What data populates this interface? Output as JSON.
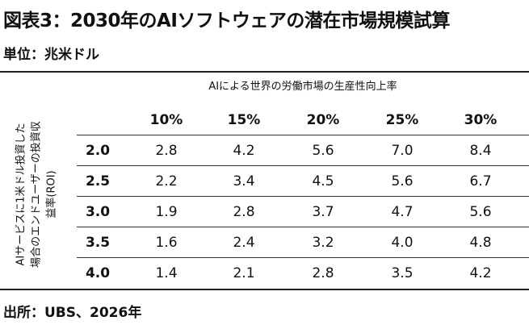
{
  "title": "図表3：2030年のAIソフトウェアの潜在市場規模試算",
  "unit": "単位：兆米ドル",
  "source": "出所：UBS、2026年",
  "chart_data": {
    "type": "table",
    "column_axis_label": "AIによる世界の労働市場の生産性向上率",
    "row_axis_label_lines": [
      "AIサービスに1米ドル投資した",
      "場合のエンドユーザーの投資収",
      "益率(ROI)"
    ],
    "columns": [
      "10%",
      "15%",
      "20%",
      "25%",
      "30%"
    ],
    "rows": [
      {
        "roi": "2.0",
        "values": [
          "2.8",
          "4.2",
          "5.6",
          "7.0",
          "8.4"
        ]
      },
      {
        "roi": "2.5",
        "values": [
          "2.2",
          "3.4",
          "4.5",
          "5.6",
          "6.7"
        ]
      },
      {
        "roi": "3.0",
        "values": [
          "1.9",
          "2.8",
          "3.7",
          "4.7",
          "5.6"
        ]
      },
      {
        "roi": "3.5",
        "values": [
          "1.6",
          "2.4",
          "3.2",
          "4.0",
          "4.8"
        ]
      },
      {
        "roi": "4.0",
        "values": [
          "1.4",
          "2.1",
          "2.8",
          "3.5",
          "4.2"
        ]
      }
    ]
  }
}
